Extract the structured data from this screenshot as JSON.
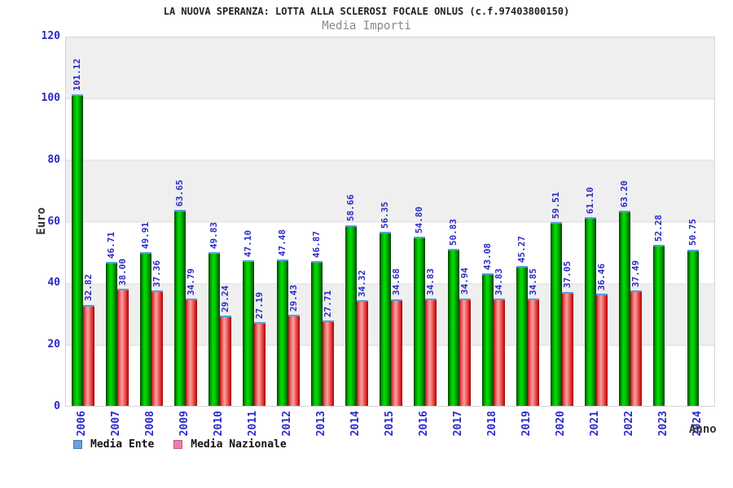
{
  "title": "LA NUOVA SPERANZA: LOTTA ALLA SCLEROSI FOCALE ONLUS (c.f.97403800150)",
  "subtitle": "Media Importi",
  "axis": {
    "y_label": "Euro",
    "x_label": "Anno"
  },
  "legend": {
    "ente_label": "Media Ente",
    "nazionale_label": "Media Nazionale"
  },
  "colors": {
    "label_blue": "#2a2ac8",
    "bar_green": "#00c000",
    "bar_red": "#e03030",
    "bar_cap_blue": "#58a0d8",
    "legend_blue": "#6ca0dc",
    "legend_pink": "#ee7fad",
    "band_gray": "#efefef",
    "subtitle_gray": "#888888"
  },
  "chart_data": {
    "type": "bar",
    "title": "LA NUOVA SPERANZA: LOTTA ALLA SCLEROSI FOCALE ONLUS (c.f.97403800150)",
    "subtitle": "Media Importi",
    "xlabel": "Anno",
    "ylabel": "Euro",
    "ylim": [
      0,
      120
    ],
    "yticks": [
      0,
      20,
      40,
      60,
      80,
      100,
      120
    ],
    "grid": "horizontal-bands",
    "legend_position": "bottom-left",
    "value_label_decimals": 2,
    "categories": [
      "2006",
      "2007",
      "2008",
      "2009",
      "2010",
      "2011",
      "2012",
      "2013",
      "2014",
      "2015",
      "2016",
      "2017",
      "2018",
      "2019",
      "2020",
      "2021",
      "2022",
      "2023",
      "2024"
    ],
    "series": [
      {
        "name": "Media Ente",
        "values": [
          101.12,
          46.71,
          49.91,
          63.65,
          49.83,
          47.1,
          47.48,
          46.87,
          58.66,
          56.35,
          54.8,
          50.83,
          43.08,
          45.27,
          59.51,
          61.1,
          63.2,
          52.28,
          50.75
        ]
      },
      {
        "name": "Media Nazionale",
        "values": [
          32.82,
          38.0,
          37.36,
          34.79,
          29.24,
          27.19,
          29.43,
          27.71,
          34.32,
          34.68,
          34.83,
          34.94,
          34.83,
          34.85,
          37.05,
          36.46,
          37.49,
          null,
          null
        ]
      }
    ]
  }
}
